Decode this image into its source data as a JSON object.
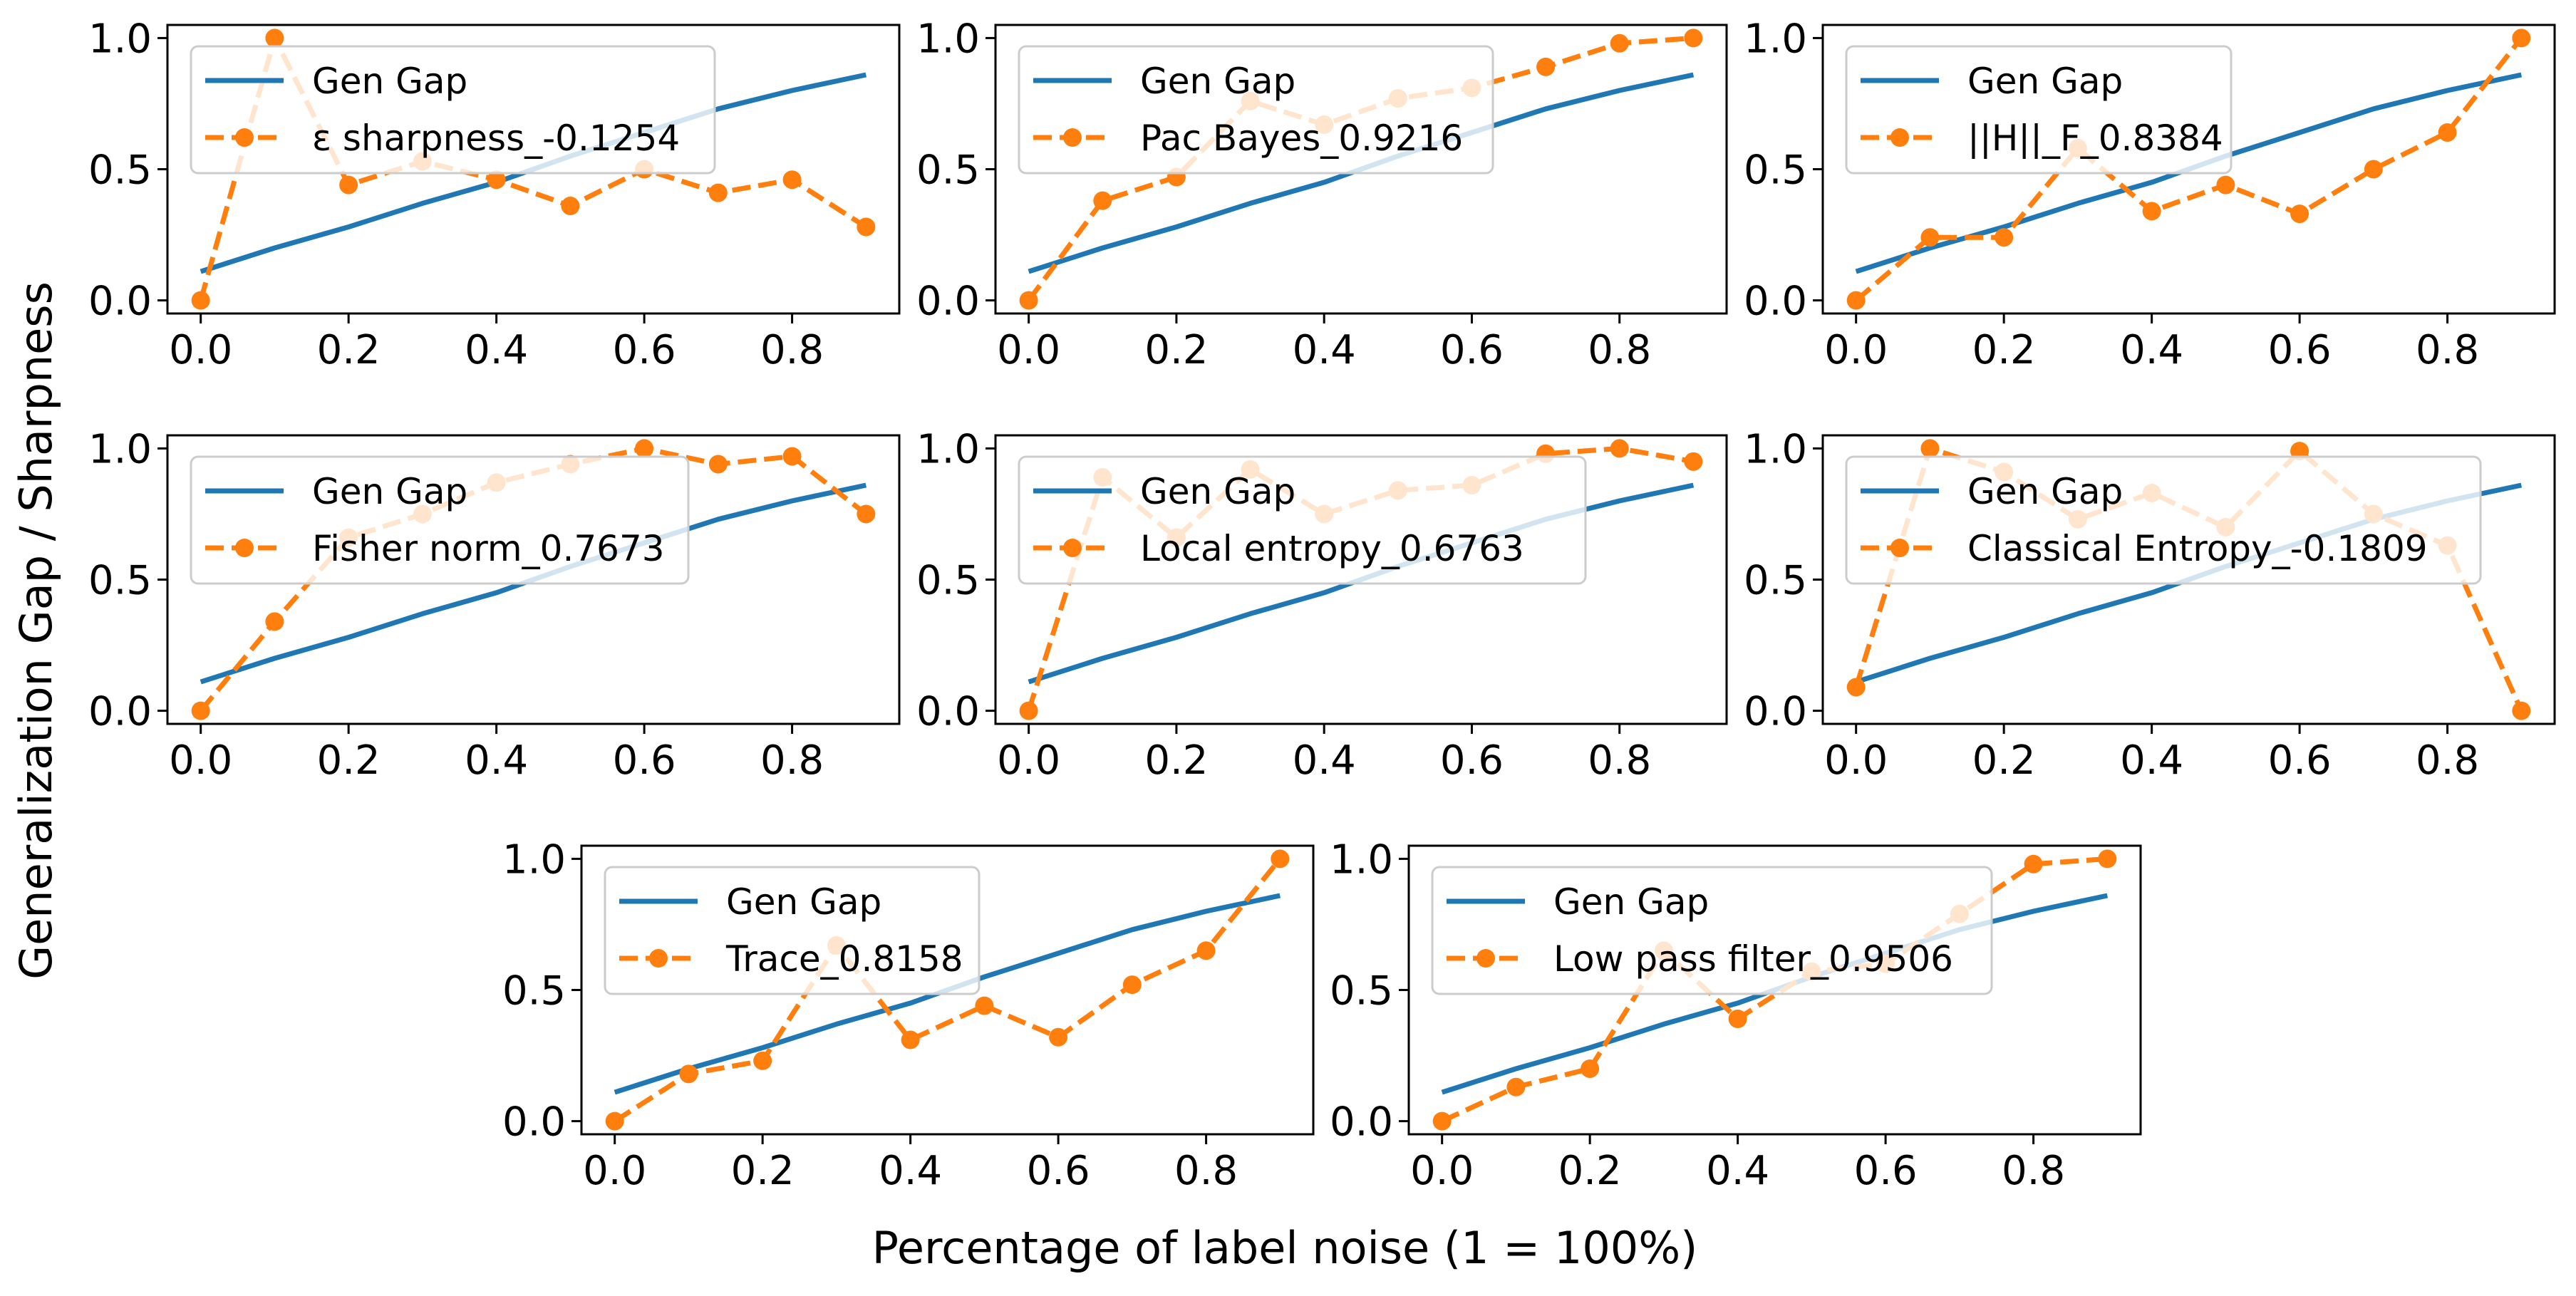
{
  "figure": {
    "ylabel": "Generalization Gap / Sharpness",
    "xlabel": "Percentage of label noise (1 = 100%)"
  },
  "colors": {
    "gen_gap": "#1f77b4",
    "metric": "#ff7f0e"
  },
  "chart_data": [
    {
      "type": "line",
      "x": [
        0.0,
        0.1,
        0.2,
        0.3,
        0.4,
        0.5,
        0.6,
        0.7,
        0.8,
        0.9
      ],
      "xticks": [
        "0.0",
        "0.2",
        "0.4",
        "0.6",
        "0.8"
      ],
      "yticks": [
        "0.0",
        "0.5",
        "1.0"
      ],
      "series": [
        {
          "name": "Gen Gap",
          "style": "solid",
          "values": [
            0.11,
            0.2,
            0.28,
            0.37,
            0.45,
            0.55,
            0.64,
            0.73,
            0.8,
            0.86
          ]
        },
        {
          "name": "ε sharpness_-0.1254",
          "style": "dashed-marker",
          "values": [
            0.0,
            1.0,
            0.44,
            0.53,
            0.46,
            0.36,
            0.5,
            0.41,
            0.46,
            0.28
          ]
        }
      ]
    },
    {
      "type": "line",
      "x": [
        0.0,
        0.1,
        0.2,
        0.3,
        0.4,
        0.5,
        0.6,
        0.7,
        0.8,
        0.9
      ],
      "xticks": [
        "0.0",
        "0.2",
        "0.4",
        "0.6",
        "0.8"
      ],
      "yticks": [
        "0.0",
        "0.5",
        "1.0"
      ],
      "series": [
        {
          "name": "Gen Gap",
          "style": "solid",
          "values": [
            0.11,
            0.2,
            0.28,
            0.37,
            0.45,
            0.55,
            0.64,
            0.73,
            0.8,
            0.86
          ]
        },
        {
          "name": "Pac Bayes_0.9216",
          "style": "dashed-marker",
          "values": [
            0.0,
            0.38,
            0.47,
            0.76,
            0.67,
            0.77,
            0.81,
            0.89,
            0.98,
            1.0
          ]
        }
      ]
    },
    {
      "type": "line",
      "x": [
        0.0,
        0.1,
        0.2,
        0.3,
        0.4,
        0.5,
        0.6,
        0.7,
        0.8,
        0.9
      ],
      "xticks": [
        "0.0",
        "0.2",
        "0.4",
        "0.6",
        "0.8"
      ],
      "yticks": [
        "0.0",
        "0.5",
        "1.0"
      ],
      "series": [
        {
          "name": "Gen Gap",
          "style": "solid",
          "values": [
            0.11,
            0.2,
            0.28,
            0.37,
            0.45,
            0.55,
            0.64,
            0.73,
            0.8,
            0.86
          ]
        },
        {
          "name": "||H||_F_0.8384",
          "style": "dashed-marker",
          "values": [
            0.0,
            0.24,
            0.24,
            0.58,
            0.34,
            0.44,
            0.33,
            0.5,
            0.64,
            1.0
          ]
        }
      ]
    },
    {
      "type": "line",
      "x": [
        0.0,
        0.1,
        0.2,
        0.3,
        0.4,
        0.5,
        0.6,
        0.7,
        0.8,
        0.9
      ],
      "xticks": [
        "0.0",
        "0.2",
        "0.4",
        "0.6",
        "0.8"
      ],
      "yticks": [
        "0.0",
        "0.5",
        "1.0"
      ],
      "series": [
        {
          "name": "Gen Gap",
          "style": "solid",
          "values": [
            0.11,
            0.2,
            0.28,
            0.37,
            0.45,
            0.55,
            0.64,
            0.73,
            0.8,
            0.86
          ]
        },
        {
          "name": "Fisher norm_0.7673",
          "style": "dashed-marker",
          "values": [
            0.0,
            0.34,
            0.66,
            0.75,
            0.87,
            0.94,
            1.0,
            0.94,
            0.97,
            0.75
          ]
        }
      ]
    },
    {
      "type": "line",
      "x": [
        0.0,
        0.1,
        0.2,
        0.3,
        0.4,
        0.5,
        0.6,
        0.7,
        0.8,
        0.9
      ],
      "xticks": [
        "0.0",
        "0.2",
        "0.4",
        "0.6",
        "0.8"
      ],
      "yticks": [
        "0.0",
        "0.5",
        "1.0"
      ],
      "series": [
        {
          "name": "Gen Gap",
          "style": "solid",
          "values": [
            0.11,
            0.2,
            0.28,
            0.37,
            0.45,
            0.55,
            0.64,
            0.73,
            0.8,
            0.86
          ]
        },
        {
          "name": "Local entropy_0.6763",
          "style": "dashed-marker",
          "values": [
            0.0,
            0.89,
            0.66,
            0.92,
            0.75,
            0.84,
            0.86,
            0.98,
            1.0,
            0.95
          ]
        }
      ]
    },
    {
      "type": "line",
      "x": [
        0.0,
        0.1,
        0.2,
        0.3,
        0.4,
        0.5,
        0.6,
        0.7,
        0.8,
        0.9
      ],
      "xticks": [
        "0.0",
        "0.2",
        "0.4",
        "0.6",
        "0.8"
      ],
      "yticks": [
        "0.0",
        "0.5",
        "1.0"
      ],
      "series": [
        {
          "name": "Gen Gap",
          "style": "solid",
          "values": [
            0.11,
            0.2,
            0.28,
            0.37,
            0.45,
            0.55,
            0.64,
            0.73,
            0.8,
            0.86
          ]
        },
        {
          "name": "Classical Entropy_-0.1809",
          "style": "dashed-marker",
          "values": [
            0.09,
            1.0,
            0.91,
            0.73,
            0.83,
            0.7,
            0.99,
            0.75,
            0.63,
            0.0
          ]
        }
      ]
    },
    {
      "type": "line",
      "x": [
        0.0,
        0.1,
        0.2,
        0.3,
        0.4,
        0.5,
        0.6,
        0.7,
        0.8,
        0.9
      ],
      "xticks": [
        "0.0",
        "0.2",
        "0.4",
        "0.6",
        "0.8"
      ],
      "yticks": [
        "0.0",
        "0.5",
        "1.0"
      ],
      "series": [
        {
          "name": "Gen Gap",
          "style": "solid",
          "values": [
            0.11,
            0.2,
            0.28,
            0.37,
            0.45,
            0.55,
            0.64,
            0.73,
            0.8,
            0.86
          ]
        },
        {
          "name": "Trace_0.8158",
          "style": "dashed-marker",
          "values": [
            0.0,
            0.18,
            0.23,
            0.67,
            0.31,
            0.44,
            0.32,
            0.52,
            0.65,
            1.0
          ]
        }
      ]
    },
    {
      "type": "line",
      "x": [
        0.0,
        0.1,
        0.2,
        0.3,
        0.4,
        0.5,
        0.6,
        0.7,
        0.8,
        0.9
      ],
      "xticks": [
        "0.0",
        "0.2",
        "0.4",
        "0.6",
        "0.8"
      ],
      "yticks": [
        "0.0",
        "0.5",
        "1.0"
      ],
      "series": [
        {
          "name": "Gen Gap",
          "style": "solid",
          "values": [
            0.11,
            0.2,
            0.28,
            0.37,
            0.45,
            0.55,
            0.64,
            0.73,
            0.8,
            0.86
          ]
        },
        {
          "name": "Low pass filter_0.9506",
          "style": "dashed-marker",
          "values": [
            0.0,
            0.13,
            0.2,
            0.65,
            0.39,
            0.57,
            0.6,
            0.79,
            0.98,
            1.0
          ]
        }
      ]
    }
  ]
}
